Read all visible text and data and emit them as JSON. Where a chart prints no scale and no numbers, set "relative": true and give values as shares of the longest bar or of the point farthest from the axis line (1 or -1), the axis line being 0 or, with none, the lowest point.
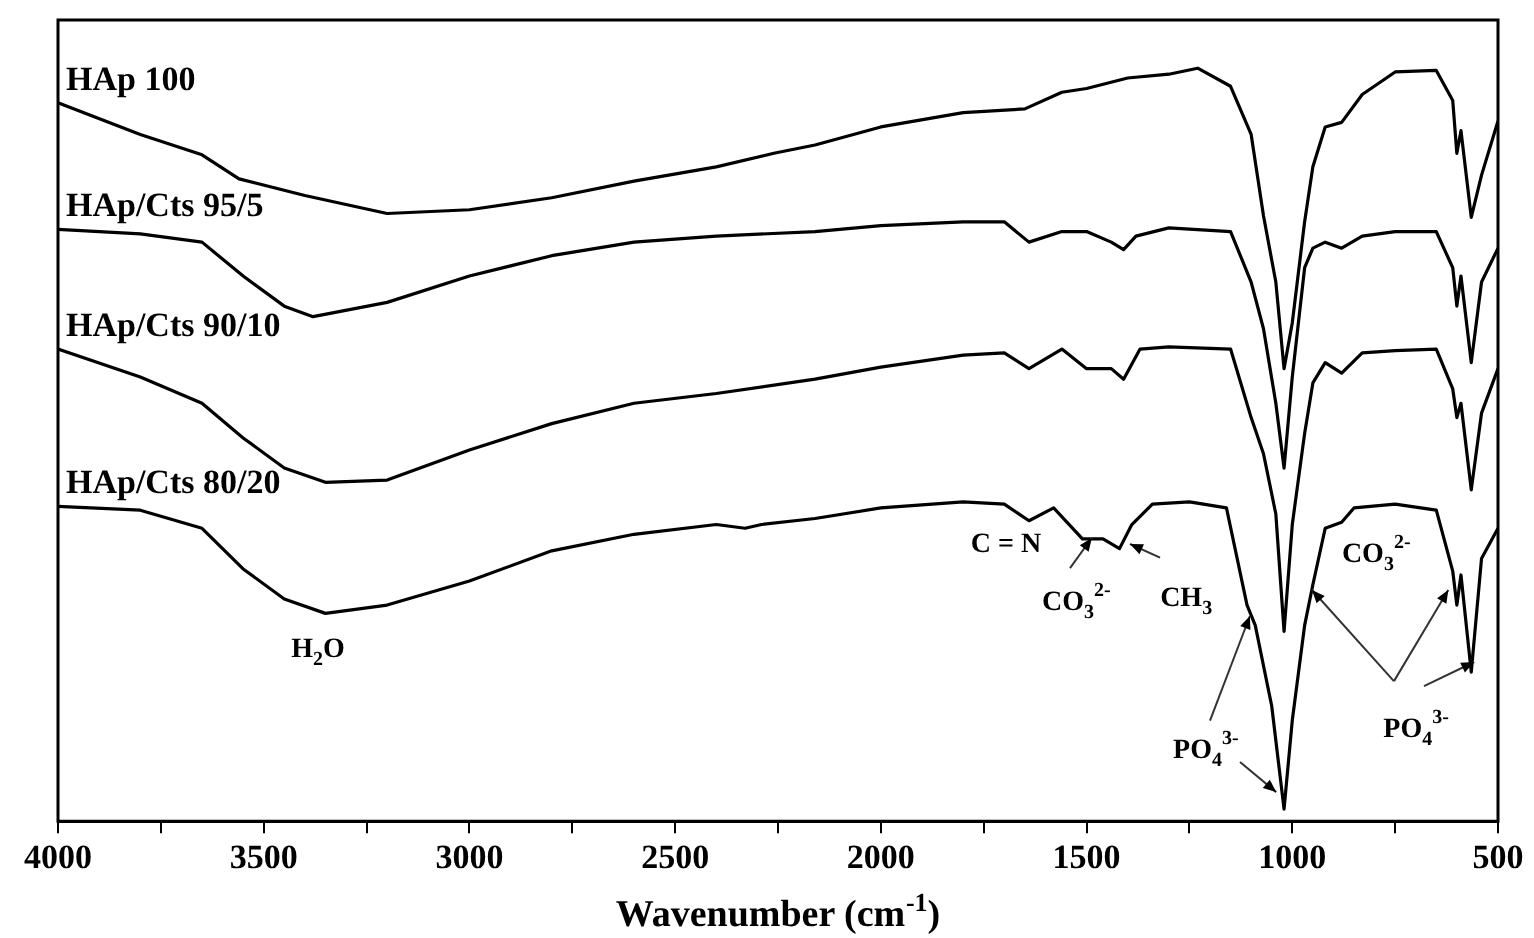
{
  "chart_data": {
    "type": "line",
    "relative": true,
    "xlabel": "Wavenumber (cm$^{-1}$)",
    "xlim": [
      4000,
      500
    ],
    "xticks": [
      4000,
      {
        "value": 3750,
        "label": null
      },
      3500,
      {
        "value": 3250,
        "label": null
      },
      3000,
      {
        "value": 2750,
        "label": null
      },
      2500,
      {
        "value": 2250,
        "label": null
      },
      2000,
      {
        "value": 1750,
        "label": null
      },
      1500,
      {
        "value": 1250,
        "label": null
      },
      1000,
      {
        "value": 750,
        "label": null
      },
      500
    ],
    "legend": false,
    "grid": false,
    "marker": "none",
    "line_style": "solid",
    "series": [
      {
        "name": "HAp 100",
        "color": "#000000",
        "x": [
          4000,
          3800,
          3650,
          3560,
          3400,
          3200,
          3000,
          2800,
          2600,
          2400,
          2260,
          2160,
          2000,
          1800,
          1650,
          1560,
          1500,
          1400,
          1300,
          1230,
          1150,
          1100,
          1070,
          1040,
          1020,
          1000,
          970,
          950,
          920,
          880,
          830,
          750,
          650,
          610,
          600,
          590,
          565,
          540,
          500
        ],
        "values": [
          0.954,
          0.912,
          0.885,
          0.853,
          0.831,
          0.807,
          0.812,
          0.828,
          0.85,
          0.869,
          0.887,
          0.898,
          0.922,
          0.941,
          0.946,
          0.968,
          0.973,
          0.987,
          0.992,
          1,
          0.976,
          0.912,
          0.804,
          0.716,
          0.601,
          0.662,
          0.796,
          0.869,
          0.922,
          0.928,
          0.965,
          0.995,
          0.997,
          0.957,
          0.887,
          0.917,
          0.802,
          0.858,
          0.93
        ]
      },
      {
        "name": "HAp/Cts 95/5",
        "color": "#000000",
        "x": [
          4000,
          3800,
          3650,
          3550,
          3450,
          3380,
          3200,
          3000,
          2800,
          2600,
          2400,
          2160,
          2000,
          1800,
          1700,
          1640,
          1560,
          1500,
          1440,
          1410,
          1380,
          1300,
          1150,
          1100,
          1070,
          1040,
          1020,
          1000,
          970,
          950,
          920,
          880,
          830,
          750,
          650,
          610,
          600,
          590,
          565,
          540,
          500
        ],
        "values": [
          0.786,
          0.78,
          0.769,
          0.724,
          0.684,
          0.67,
          0.689,
          0.724,
          0.751,
          0.769,
          0.777,
          0.783,
          0.791,
          0.796,
          0.796,
          0.769,
          0.783,
          0.783,
          0.769,
          0.759,
          0.777,
          0.788,
          0.783,
          0.716,
          0.654,
          0.555,
          0.469,
          0.59,
          0.735,
          0.761,
          0.769,
          0.761,
          0.777,
          0.783,
          0.783,
          0.735,
          0.684,
          0.724,
          0.609,
          0.716,
          0.761
        ]
      },
      {
        "name": "HAp/Cts 90/10",
        "color": "#000000",
        "x": [
          4000,
          3800,
          3650,
          3550,
          3450,
          3350,
          3200,
          3000,
          2800,
          2600,
          2400,
          2160,
          2000,
          1800,
          1700,
          1640,
          1560,
          1500,
          1440,
          1410,
          1370,
          1300,
          1150,
          1100,
          1070,
          1040,
          1020,
          1000,
          970,
          950,
          920,
          880,
          830,
          750,
          650,
          610,
          600,
          590,
          565,
          540,
          500
        ],
        "values": [
          0.627,
          0.59,
          0.555,
          0.509,
          0.469,
          0.45,
          0.453,
          0.493,
          0.528,
          0.555,
          0.568,
          0.587,
          0.603,
          0.619,
          0.622,
          0.601,
          0.627,
          0.601,
          0.601,
          0.587,
          0.627,
          0.63,
          0.627,
          0.536,
          0.488,
          0.408,
          0.252,
          0.394,
          0.515,
          0.582,
          0.609,
          0.595,
          0.622,
          0.625,
          0.627,
          0.574,
          0.536,
          0.555,
          0.44,
          0.542,
          0.601
        ]
      },
      {
        "name": "HAp/Cts 80/20",
        "color": "#000000",
        "x": [
          4000,
          3800,
          3650,
          3550,
          3450,
          3350,
          3200,
          3000,
          2800,
          2600,
          2400,
          2330,
          2290,
          2160,
          2000,
          1800,
          1700,
          1640,
          1580,
          1510,
          1460,
          1420,
          1390,
          1340,
          1250,
          1160,
          1110,
          1090,
          1050,
          1020,
          1000,
          970,
          950,
          920,
          880,
          850,
          750,
          650,
          610,
          600,
          590,
          565,
          540,
          500
        ],
        "values": [
          0.418,
          0.413,
          0.389,
          0.335,
          0.295,
          0.276,
          0.287,
          0.319,
          0.359,
          0.381,
          0.394,
          0.389,
          0.394,
          0.402,
          0.416,
          0.424,
          0.421,
          0.399,
          0.416,
          0.375,
          0.375,
          0.362,
          0.394,
          0.421,
          0.424,
          0.416,
          0.287,
          0.26,
          0.153,
          0.016,
          0.134,
          0.26,
          0.314,
          0.389,
          0.397,
          0.416,
          0.421,
          0.413,
          0.332,
          0.287,
          0.327,
          0.198,
          0.349,
          0.389
        ]
      }
    ],
    "annotations": [
      "H$_{2}$O",
      "C = N",
      "CO$_{3}$$^{2-}$",
      "CH$_{3}$",
      "CO$_{3}$$^{2-}$",
      "PO$_{4}$$^{3-}$",
      "PO$_{4}$$^{3-}$"
    ]
  }
}
